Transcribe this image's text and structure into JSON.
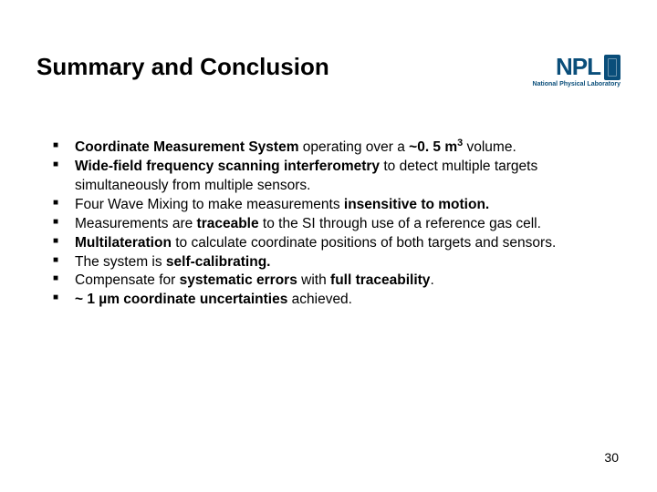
{
  "title": "Summary and Conclusion",
  "logo": {
    "text": "NPL",
    "subtitle": "National Physical Laboratory"
  },
  "bullets": [
    {
      "html": "<b>Coordinate Measurement System</b> operating over a <b>~0. 5 m<sup>3</sup></b> volume."
    },
    {
      "html": "<b>Wide-field frequency scanning interferometry</b> to detect multiple targets simultaneously from multiple sensors."
    },
    {
      "html": "Four Wave Mixing to make measurements <b>insensitive to motion.</b>"
    },
    {
      "html": "Measurements are <b>traceable</b> to the SI through use of a reference gas cell."
    },
    {
      "html": "<b>Multilateration</b> to calculate coordinate positions of both targets and sensors."
    },
    {
      "html": "The system is <b>self-calibrating.</b>"
    },
    {
      "html": "Compensate for <b>systematic errors</b> with <b>full traceability</b>."
    },
    {
      "html": "<b>~ 1 µm coordinate uncertainties</b> achieved."
    }
  ],
  "page_number": "30",
  "colors": {
    "logo_color": "#0a4e7a",
    "text_color": "#000000",
    "background": "#ffffff"
  },
  "typography": {
    "title_fontsize": 26,
    "body_fontsize": 15.5,
    "logo_fontsize": 26
  }
}
